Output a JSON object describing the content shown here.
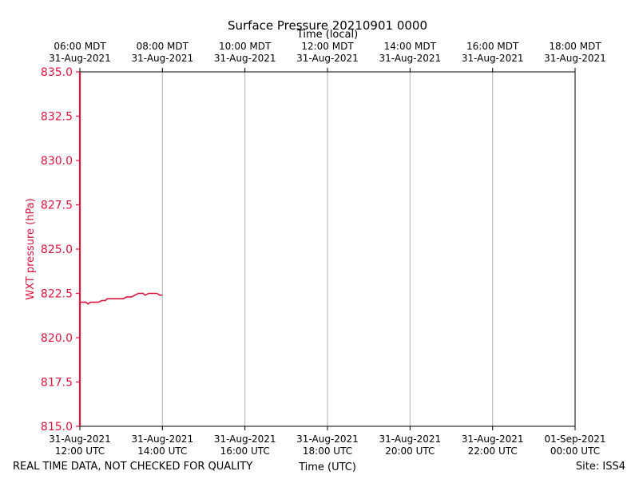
{
  "chart_data": {
    "type": "line",
    "title": "Surface Pressure 20210901 0000",
    "xlabel": "Time (UTC)",
    "top_xlabel": "Time (local)",
    "ylabel": "WXT pressure (hPa)",
    "ylim": [
      815.0,
      835.0
    ],
    "xlim_minutes": [
      0,
      720
    ],
    "y_ticks": [
      {
        "value": 815.0,
        "label": "815.0"
      },
      {
        "value": 817.5,
        "label": "817.5"
      },
      {
        "value": 820.0,
        "label": "820.0"
      },
      {
        "value": 822.5,
        "label": "822.5"
      },
      {
        "value": 825.0,
        "label": "825.0"
      },
      {
        "value": 827.5,
        "label": "827.5"
      },
      {
        "value": 830.0,
        "label": "830.0"
      },
      {
        "value": 832.5,
        "label": "832.5"
      },
      {
        "value": 835.0,
        "label": "835.0"
      }
    ],
    "x_ticks": [
      {
        "minutes": 0,
        "date": "31-Aug-2021",
        "time": "12:00 UTC",
        "local_time": "06:00 MDT",
        "local_date": "31-Aug-2021"
      },
      {
        "minutes": 120,
        "date": "31-Aug-2021",
        "time": "14:00 UTC",
        "local_time": "08:00 MDT",
        "local_date": "31-Aug-2021"
      },
      {
        "minutes": 240,
        "date": "31-Aug-2021",
        "time": "16:00 UTC",
        "local_time": "10:00 MDT",
        "local_date": "31-Aug-2021"
      },
      {
        "minutes": 360,
        "date": "31-Aug-2021",
        "time": "18:00 UTC",
        "local_time": "12:00 MDT",
        "local_date": "31-Aug-2021"
      },
      {
        "minutes": 480,
        "date": "31-Aug-2021",
        "time": "20:00 UTC",
        "local_time": "14:00 MDT",
        "local_date": "31-Aug-2021"
      },
      {
        "minutes": 600,
        "date": "31-Aug-2021",
        "time": "22:00 UTC",
        "local_time": "16:00 MDT",
        "local_date": "31-Aug-2021"
      },
      {
        "minutes": 720,
        "date": "01-Sep-2021",
        "time": "00:00 UTC",
        "local_time": "18:00 MDT",
        "local_date": "31-Aug-2021"
      }
    ],
    "grid": "vertical",
    "series": [
      {
        "name": "WXT pressure",
        "color": "#dc143c",
        "minutes": [
          0,
          5,
          9,
          12,
          15,
          22,
          27,
          32,
          37,
          40,
          45,
          50,
          55,
          60,
          63,
          68,
          72,
          75,
          80,
          85,
          88,
          92,
          95,
          100,
          104,
          108,
          112,
          116,
          120
        ],
        "values": [
          822.0,
          822.0,
          822.0,
          821.9,
          822.0,
          822.0,
          822.0,
          822.1,
          822.1,
          822.2,
          822.2,
          822.2,
          822.2,
          822.2,
          822.2,
          822.3,
          822.3,
          822.3,
          822.4,
          822.5,
          822.5,
          822.5,
          822.4,
          822.5,
          822.5,
          822.5,
          822.5,
          822.4,
          822.4
        ]
      }
    ]
  },
  "footer": {
    "left_note": "REAL TIME DATA, NOT CHECKED FOR QUALITY",
    "site": "Site: ISS4"
  },
  "colors": {
    "series": "#dc143c",
    "grid": "#b0b0b0",
    "axis": "#000000"
  }
}
